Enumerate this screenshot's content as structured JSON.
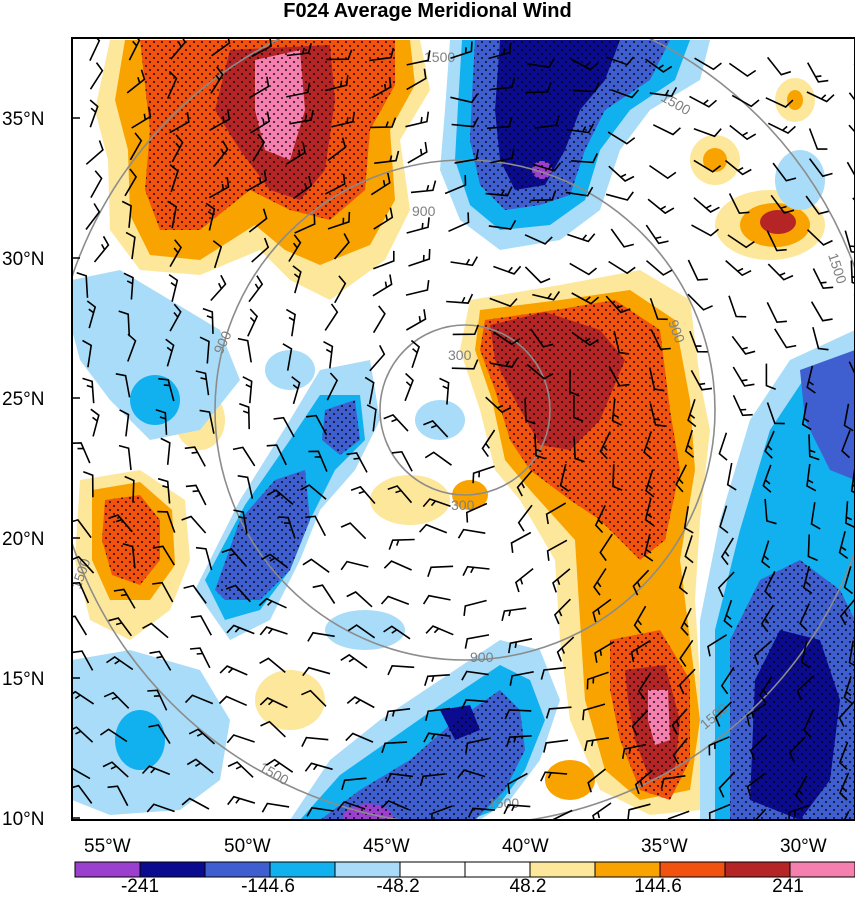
{
  "title": "F024 Average Meridional Wind",
  "lat_labels": [
    "35°N",
    "30°N",
    "25°N",
    "20°N",
    "15°N",
    "10°N"
  ],
  "lon_labels": [
    "55°W",
    "50°W",
    "45°W",
    "40°W",
    "35°W",
    "30°W"
  ],
  "ring_labels": [
    "300",
    "300",
    "900",
    "900",
    "900",
    "900",
    "1500",
    "1500",
    "1500",
    "1500",
    "1500",
    "1500",
    "1500"
  ],
  "colorbar": {
    "colors": [
      "#9b3fcf",
      "#0b0b8f",
      "#3f5fd0",
      "#11b0ee",
      "#a8dcf8",
      "#ffffff",
      "#ffffff",
      "#fde79a",
      "#f9a300",
      "#f2520f",
      "#b52525",
      "#f57fae"
    ],
    "labels": [
      "-241",
      "-144.6",
      "-48.2",
      "48.2",
      "144.6",
      "241"
    ]
  },
  "colors": {
    "ring": "#8c8c8c",
    "barb": "#000000"
  }
}
